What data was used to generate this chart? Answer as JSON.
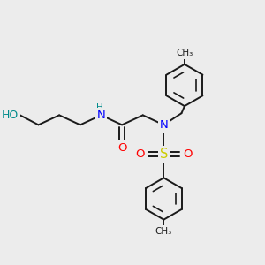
{
  "background_color": "#ececec",
  "bond_color": "#1a1a1a",
  "atom_colors": {
    "O": "#ff0000",
    "N": "#0000ff",
    "S": "#cccc00",
    "HO": "#008b8b",
    "C": "#1a1a1a",
    "H": "#404040",
    "NH": "#008b8b"
  },
  "figsize": [
    3.0,
    3.0
  ],
  "dpi": 100,
  "xlim": [
    0,
    10
  ],
  "ylim": [
    0,
    10
  ]
}
